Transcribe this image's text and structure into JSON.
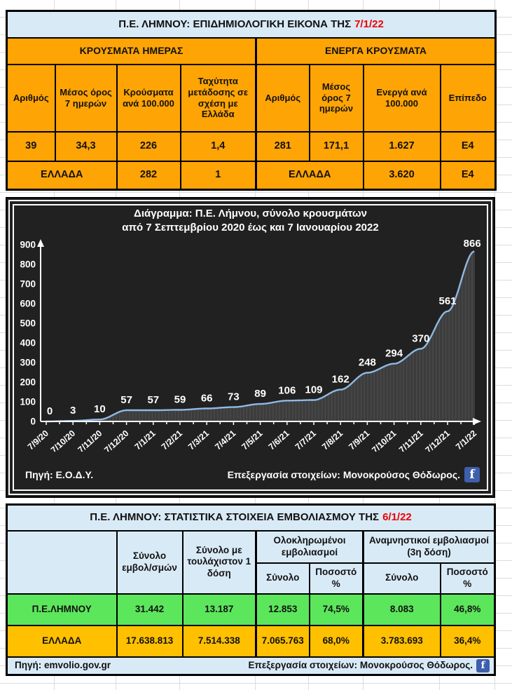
{
  "colors": {
    "orange": "#FFA405",
    "gold": "#FFC000",
    "lightblue": "#D9EAF7",
    "green": "#5CE65C",
    "red": "#EE0000",
    "chartbg": "#212121",
    "bar": "#4E4E4E",
    "line": "#8FB9E4",
    "fb": "#3E5FAC",
    "grid": "#DCDCDC"
  },
  "icons": {
    "facebook": "f"
  },
  "epi_table": {
    "title": "Π.Ε. ΛΗΜΝΟΥ: ΕΠΙΔΗΜΙΟΛΟΓΙΚΗ ΕΙΚΟΝΑ ΤΗΣ",
    "title_date": "7/1/22",
    "group_left": "ΚΡΟΥΣΜΑΤΑ ΗΜΕΡΑΣ",
    "group_right": "ΕΝΕΡΓΑ ΚΡΟΥΣΜΑΤΑ",
    "headers": [
      "Αριθμός",
      "Μέσος όρος 7 ημερών",
      "Κρούσματα ανά 100.000",
      "Ταχύτητα μετάδοσης σε σχέση με Ελλάδα",
      "Αριθμός",
      "Μέσος όρος 7 ημερών",
      "Ενεργά ανά 100.000",
      "Επίπεδο"
    ],
    "limnos_row": [
      "39",
      "34,3",
      "226",
      "1,4",
      "281",
      "171,1",
      "1.627",
      "Ε4"
    ],
    "greece_row": {
      "label_left": "ΕΛΛΑΔΑ",
      "cases_per_100k": "282",
      "transmission_speed": "1",
      "label_right": "ΕΛΛΑΔΑ",
      "active_per_100k": "3.620",
      "level": "Ε4"
    }
  },
  "chart_data": {
    "type": "area",
    "title_line1": "Διάγραμμα: Π.Ε. Λήμνου, σύνολο κρουσμάτων",
    "title_line2": "από 7 Σεπτεμβρίου 2020 έως και 7 Ιανουαρίου 2022",
    "x": [
      "7/9/20",
      "7/10/20",
      "7/11/20",
      "7/12/20",
      "7/1/21",
      "7/2/21",
      "7/3/21",
      "7/4/21",
      "7/5/21",
      "7/6/21",
      "7/7/21",
      "7/8/21",
      "7/9/21",
      "7/10/21",
      "7/11/21",
      "7/12/21",
      "7/1/22"
    ],
    "values": [
      0,
      3,
      10,
      57,
      57,
      59,
      66,
      73,
      89,
      106,
      109,
      162,
      248,
      294,
      370,
      561,
      866
    ],
    "ylim": [
      0,
      900
    ],
    "ytick_step": 100,
    "grid": false,
    "legend": false,
    "source": "Πηγή: Ε.Ο.Δ.Υ.",
    "credit": "Επεξεργασία στοιχείων: Μονοκρούσος Θόδωρος."
  },
  "vax_table": {
    "title": "Π.Ε. ΛΗΜΝΟΥ: ΣΤΑΤΙΣΤΙΚΑ ΣΤΟΙΧΕΙΑ ΕΜΒΟΛΙΑΣΜΟΥ ΤΗΣ",
    "title_date": "6/1/22",
    "col_total": "Σύνολο εμβολ/σμών",
    "col_atleast1": "Σύνολο με τουλάχιστον 1 δόση",
    "group_completed": "Ολοκληρωμένοι εμβολιασμοί",
    "group_booster": "Αναμνηστικοί εμβολιασμοί (3η δόση)",
    "sub_total": "Σύνολο",
    "sub_pct": "Ποσοστό %",
    "limnos": {
      "label": "Π.Ε.ΛΗΜΝΟΥ",
      "total": "31.442",
      "atleast1": "13.187",
      "completed_total": "12.853",
      "completed_pct": "74,5%",
      "booster_total": "8.083",
      "booster_pct": "46,8%"
    },
    "greece": {
      "label": "ΕΛΛΑΔΑ",
      "total": "17.638.813",
      "atleast1": "7.514.338",
      "completed_total": "7.065.763",
      "completed_pct": "68,0%",
      "booster_total": "3.783.693",
      "booster_pct": "36,4%"
    },
    "source": "Πηγή: emvolio.gov.gr",
    "credit": "Επεξεργασία στοιχείων: Μονοκρούσος Θόδωρος."
  }
}
